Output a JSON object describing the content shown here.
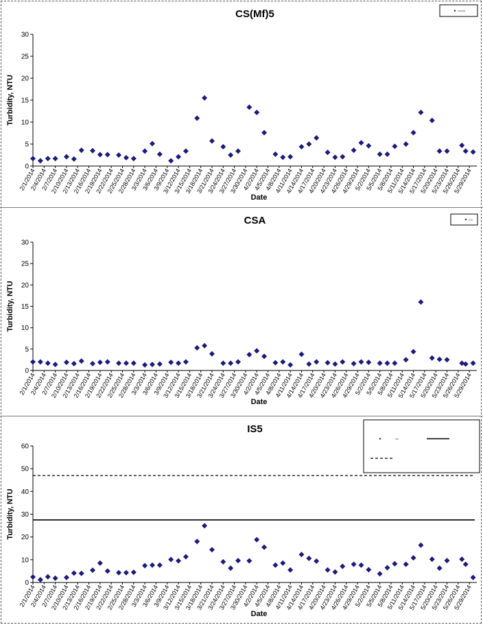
{
  "chart_data": [
    {
      "type": "scatter",
      "title": "CS(Mf)5",
      "xlabel": "Date",
      "ylabel": "Turbidity, NTU",
      "ylim": [
        0,
        30
      ],
      "yticks": [
        "0",
        "5",
        "10",
        "15",
        "20",
        "25",
        "30"
      ],
      "grid": false,
      "legend": "top-right",
      "legend_entries": [
        "CS(Mf)5"
      ],
      "marker_color": "#1b1b7a",
      "x": [
        "2/1/2014",
        "2/3/2014",
        "2/5/2014",
        "2/7/2014",
        "2/10/2014",
        "2/12/2014",
        "2/14/2014",
        "2/17/2014",
        "2/19/2014",
        "2/21/2014",
        "2/24/2014",
        "2/26/2014",
        "2/28/2014",
        "3/3/2014",
        "3/5/2014",
        "3/7/2014",
        "3/10/2014",
        "3/12/2014",
        "3/14/2014",
        "3/17/2014",
        "3/19/2014",
        "3/21/2014",
        "3/24/2014",
        "3/26/2014",
        "3/28/2014",
        "3/31/2014",
        "4/2/2014",
        "4/4/2014",
        "4/7/2014",
        "4/9/2014",
        "4/11/2014",
        "4/14/2014",
        "4/16/2014",
        "4/18/2014",
        "4/21/2014",
        "4/23/2014",
        "4/25/2014",
        "4/28/2014",
        "4/30/2014",
        "5/2/2014",
        "5/5/2014",
        "5/7/2014",
        "5/9/2014",
        "5/12/2014",
        "5/14/2014",
        "5/16/2014",
        "5/19/2014",
        "5/21/2014",
        "5/23/2014",
        "5/27/2014",
        "5/28/2014",
        "5/30/2014"
      ],
      "values": [
        1.7,
        1.2,
        1.7,
        1.7,
        2.1,
        1.6,
        3.6,
        3.5,
        2.6,
        2.6,
        2.5,
        1.9,
        1.7,
        3.4,
        5.1,
        2.7,
        1.2,
        2.1,
        3.4,
        10.9,
        15.5,
        5.7,
        4.4,
        2.5,
        3.4,
        13.4,
        12.2,
        7.6,
        2.7,
        2.0,
        2.1,
        4.4,
        5.0,
        6.4,
        3.1,
        2.0,
        2.1,
        3.6,
        5.3,
        4.6,
        2.7,
        2.7,
        4.5,
        5.0,
        7.6,
        12.2,
        10.4,
        3.4,
        3.4,
        4.7,
        3.4,
        3.2
      ],
      "tick_labels": [
        "2/1/2014",
        "2/4/2014",
        "2/7/2014",
        "2/10/2014",
        "2/13/2014",
        "2/16/2014",
        "2/19/2014",
        "2/22/2014",
        "2/25/2014",
        "2/28/2014",
        "3/3/2014",
        "3/6/2014",
        "3/9/2014",
        "3/12/2014",
        "3/15/2014",
        "3/18/2014",
        "3/21/2014",
        "3/24/2014",
        "3/27/2014",
        "3/30/2014",
        "4/2/2014",
        "4/5/2014",
        "4/8/2014",
        "4/11/2014",
        "4/14/2014",
        "4/17/2014",
        "4/20/2014",
        "4/23/2014",
        "4/26/2014",
        "4/29/2014",
        "5/2/2014",
        "5/5/2014",
        "5/8/2014",
        "5/11/2014",
        "5/14/2014",
        "5/17/2014",
        "5/20/2014",
        "5/23/2014",
        "5/26/2014",
        "5/29/2014"
      ],
      "xlim": [
        "2/1/2014",
        "5/31/2014"
      ]
    },
    {
      "type": "scatter",
      "title": "CSA",
      "xlabel": "Date",
      "ylabel": "Turbidity, NTU",
      "ylim": [
        0,
        30
      ],
      "yticks": [
        "0",
        "5",
        "10",
        "15",
        "20",
        "25",
        "30"
      ],
      "grid": false,
      "legend": "top-right",
      "legend_entries": [
        "CSA"
      ],
      "marker_color": "#1b1b7a",
      "x": [
        "2/1/2014",
        "2/3/2014",
        "2/5/2014",
        "2/7/2014",
        "2/10/2014",
        "2/12/2014",
        "2/14/2014",
        "2/17/2014",
        "2/19/2014",
        "2/21/2014",
        "2/24/2014",
        "2/26/2014",
        "2/28/2014",
        "3/3/2014",
        "3/5/2014",
        "3/7/2014",
        "3/10/2014",
        "3/12/2014",
        "3/14/2014",
        "3/17/2014",
        "3/19/2014",
        "3/21/2014",
        "3/24/2014",
        "3/26/2014",
        "3/28/2014",
        "3/31/2014",
        "4/2/2014",
        "4/4/2014",
        "4/7/2014",
        "4/9/2014",
        "4/11/2014",
        "4/14/2014",
        "4/16/2014",
        "4/18/2014",
        "4/21/2014",
        "4/23/2014",
        "4/25/2014",
        "4/28/2014",
        "4/30/2014",
        "5/2/2014",
        "5/5/2014",
        "5/7/2014",
        "5/9/2014",
        "5/12/2014",
        "5/14/2014",
        "5/16/2014",
        "5/19/2014",
        "5/21/2014",
        "5/23/2014",
        "5/27/2014",
        "5/28/2014",
        "5/30/2014"
      ],
      "values": [
        2.0,
        2.0,
        1.7,
        1.4,
        1.9,
        1.6,
        2.2,
        1.6,
        1.9,
        2.0,
        1.7,
        1.7,
        1.7,
        1.3,
        1.4,
        1.5,
        1.9,
        1.7,
        2.0,
        5.3,
        5.8,
        3.9,
        1.7,
        1.7,
        2.0,
        3.7,
        4.6,
        3.3,
        1.8,
        2.0,
        1.3,
        3.8,
        1.5,
        2.0,
        1.8,
        1.5,
        2.0,
        1.6,
        2.0,
        1.9,
        1.7,
        1.7,
        1.7,
        2.5,
        4.4,
        16.0,
        2.9,
        2.6,
        2.5,
        1.7,
        1.5,
        1.7
      ],
      "tick_labels": [
        "2/1/2014",
        "2/4/2014",
        "2/7/2014",
        "2/10/2014",
        "2/13/2014",
        "2/16/2014",
        "2/19/2014",
        "2/22/2014",
        "2/25/2014",
        "2/28/2014",
        "3/3/2014",
        "3/6/2014",
        "3/9/2014",
        "3/12/2014",
        "3/15/2014",
        "3/18/2014",
        "3/21/2014",
        "3/24/2014",
        "3/27/2014",
        "3/30/2014",
        "4/2/2014",
        "4/5/2014",
        "4/8/2014",
        "4/11/2014",
        "4/14/2014",
        "4/17/2014",
        "4/20/2014",
        "4/23/2014",
        "4/26/2014",
        "4/29/2014",
        "5/2/2014",
        "5/5/2014",
        "5/8/2014",
        "5/11/2014",
        "5/14/2014",
        "5/17/2014",
        "5/20/2014",
        "5/23/2014",
        "5/26/2014",
        "5/29/2014"
      ],
      "xlim": [
        "2/1/2014",
        "5/31/2014"
      ]
    },
    {
      "type": "scatter",
      "title": "IS5",
      "xlabel": "Date",
      "ylabel": "Turbidity, NTU",
      "ylim": [
        0,
        60
      ],
      "yticks": [
        "0",
        "10",
        "20",
        "30",
        "40",
        "50",
        "60"
      ],
      "grid": false,
      "legend": "top-right",
      "legend_entries": [
        "IS5",
        "",
        ""
      ],
      "marker_color": "#1b1b7a",
      "reference_lines": [
        {
          "y": 27.5,
          "style": "solid"
        },
        {
          "y": 47,
          "style": "dashed"
        }
      ],
      "x": [
        "2/1/2014",
        "2/3/2014",
        "2/5/2014",
        "2/7/2014",
        "2/10/2014",
        "2/12/2014",
        "2/14/2014",
        "2/17/2014",
        "2/19/2014",
        "2/21/2014",
        "2/24/2014",
        "2/26/2014",
        "2/28/2014",
        "3/3/2014",
        "3/5/2014",
        "3/7/2014",
        "3/10/2014",
        "3/12/2014",
        "3/14/2014",
        "3/17/2014",
        "3/19/2014",
        "3/21/2014",
        "3/24/2014",
        "3/26/2014",
        "3/28/2014",
        "3/31/2014",
        "4/2/2014",
        "4/4/2014",
        "4/7/2014",
        "4/9/2014",
        "4/11/2014",
        "4/14/2014",
        "4/16/2014",
        "4/18/2014",
        "4/21/2014",
        "4/23/2014",
        "4/25/2014",
        "4/28/2014",
        "4/30/2014",
        "5/2/2014",
        "5/5/2014",
        "5/7/2014",
        "5/9/2014",
        "5/12/2014",
        "5/14/2014",
        "5/16/2014",
        "5/19/2014",
        "5/21/2014",
        "5/23/2014",
        "5/27/2014",
        "5/28/2014",
        "5/30/2014"
      ],
      "values": [
        2.4,
        1.2,
        2.5,
        1.9,
        2.2,
        4.1,
        4.0,
        5.4,
        8.5,
        5.0,
        4.3,
        4.3,
        4.5,
        7.4,
        7.6,
        7.6,
        10.1,
        9.5,
        11.3,
        18.0,
        24.9,
        14.4,
        9.1,
        6.3,
        9.6,
        9.5,
        18.8,
        15.5,
        7.6,
        8.5,
        5.5,
        12.3,
        10.6,
        9.4,
        5.5,
        4.6,
        7.1,
        8.0,
        7.6,
        5.6,
        3.8,
        6.5,
        8.2,
        8.0,
        10.8,
        16.4,
        10.2,
        6.3,
        9.6,
        10.2,
        8.0,
        2.2
      ],
      "tick_labels": [
        "2/1/2014",
        "2/4/2014",
        "2/7/2014",
        "2/10/2014",
        "2/13/2014",
        "2/16/2014",
        "2/19/2014",
        "2/22/2014",
        "2/25/2014",
        "2/28/2014",
        "3/3/2014",
        "3/6/2014",
        "3/9/2014",
        "3/12/2014",
        "3/15/2014",
        "3/18/2014",
        "3/21/2014",
        "3/24/2014",
        "3/27/2014",
        "3/30/2014",
        "4/2/2014",
        "4/5/2014",
        "4/8/2014",
        "4/11/2014",
        "4/14/2014",
        "4/17/2014",
        "4/20/2014",
        "4/23/2014",
        "4/26/2014",
        "4/29/2014",
        "5/2/2014",
        "5/5/2014",
        "5/8/2014",
        "5/11/2014",
        "5/14/2014",
        "5/17/2014",
        "5/20/2014",
        "5/23/2014",
        "5/26/2014",
        "5/29/2014"
      ],
      "xlim": [
        "2/1/2014",
        "5/31/2014"
      ]
    }
  ]
}
